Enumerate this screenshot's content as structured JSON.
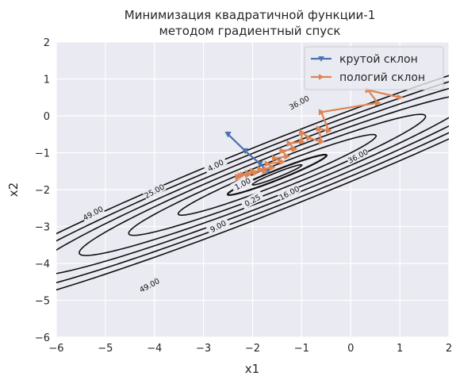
{
  "chart_data": {
    "type": "line",
    "title_lines": [
      "Минимизация квадратичной функции-1",
      "методом градиентный спуск"
    ],
    "xlabel": "x1",
    "ylabel": "x2",
    "xlim": [
      -6,
      2
    ],
    "ylim": [
      -6,
      2
    ],
    "x_ticks": [
      "−6",
      "−5",
      "−4",
      "−3",
      "−2",
      "−1",
      "0",
      "1",
      "2"
    ],
    "y_ticks": [
      "−6",
      "−5",
      "−4",
      "−3",
      "−2",
      "−1",
      "0",
      "1",
      "2"
    ],
    "grid": true,
    "legend_position": "top-right",
    "contour": {
      "center": [
        -1.5,
        -1.6
      ],
      "angle_deg": 28,
      "levels": [
        0.25,
        1,
        4,
        9,
        16,
        25,
        36,
        49
      ],
      "semi_axes_sqrt_level": [
        1.14,
        0.125
      ],
      "labels": [
        {
          "text": "0.25",
          "pos": [
            -2.0,
            -2.3
          ]
        },
        {
          "text": "1.00",
          "pos": [
            -2.2,
            -1.85
          ]
        },
        {
          "text": "4.00",
          "pos": [
            -2.75,
            -1.35
          ]
        },
        {
          "text": "9.00",
          "pos": [
            -2.7,
            -3.0
          ]
        },
        {
          "text": "16.00",
          "pos": [
            -1.25,
            -2.1
          ]
        },
        {
          "text": "25.00",
          "pos": [
            -4.0,
            -2.05
          ]
        },
        {
          "text": "36.00",
          "pos": [
            -1.05,
            0.35
          ]
        },
        {
          "text": "36.00",
          "pos": [
            0.15,
            -1.1
          ]
        },
        {
          "text": "49.00",
          "pos": [
            -5.25,
            -2.65
          ]
        },
        {
          "text": "49.00",
          "pos": [
            -4.1,
            -4.6
          ]
        }
      ],
      "color": "#111111"
    },
    "series": [
      {
        "name": "крутой склон",
        "color": "#4c72b0",
        "marker": "triangle-down",
        "x": [
          -2.5,
          -2.15,
          -1.85,
          -1.7
        ],
        "y": [
          -0.5,
          -0.95,
          -1.3,
          -1.5
        ]
      },
      {
        "name": "пологий склон",
        "color": "#dd8452",
        "marker": "triangle-right",
        "x": [
          1.0,
          0.35,
          0.55,
          -0.6,
          -0.45,
          -0.65,
          -0.6,
          -0.85,
          -1.0,
          -1.0,
          -1.25,
          -1.15,
          -1.4,
          -1.3,
          -1.55,
          -1.4,
          -1.7,
          -1.6,
          -1.85,
          -1.75,
          -2.0,
          -1.95,
          -2.1,
          -2.1,
          -2.2,
          -2.25,
          -2.3,
          -2.3
        ],
        "y": [
          0.5,
          0.7,
          0.35,
          0.1,
          -0.4,
          -0.35,
          -0.7,
          -0.6,
          -0.45,
          -0.7,
          -0.75,
          -0.9,
          -0.95,
          -1.1,
          -1.15,
          -1.25,
          -1.3,
          -1.4,
          -1.45,
          -1.5,
          -1.5,
          -1.55,
          -1.55,
          -1.6,
          -1.6,
          -1.62,
          -1.65,
          -1.67
        ]
      }
    ]
  }
}
